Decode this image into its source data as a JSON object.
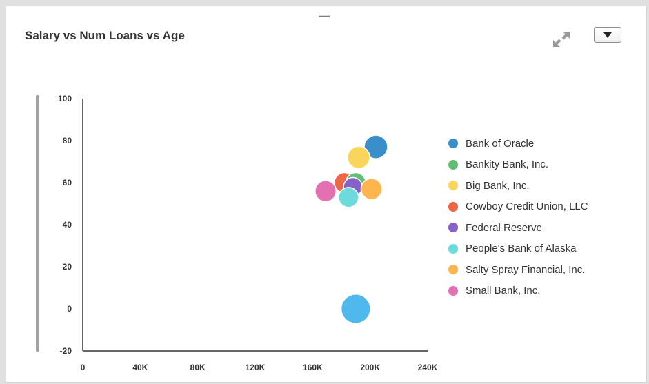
{
  "card": {
    "title": "Salary vs Num Loans vs Age"
  },
  "controls": {
    "expand_icon": "expand-arrows-icon",
    "menu_icon": "caret-down-icon"
  },
  "chart_data": {
    "type": "scatter",
    "subtype": "bubble",
    "title": "Salary vs Num Loans vs Age",
    "xlabel": "",
    "ylabel": "",
    "xlim": [
      0,
      240000
    ],
    "ylim": [
      -20,
      100
    ],
    "x_ticks": [
      "0",
      "40K",
      "80K",
      "120K",
      "160K",
      "200K",
      "240K"
    ],
    "y_ticks": [
      "100",
      "80",
      "60",
      "40",
      "20",
      "0",
      "-20"
    ],
    "grid": false,
    "legend_position": "right",
    "series": [
      {
        "name": "Bank of Oracle",
        "color": "#3a8fcb",
        "points": [
          {
            "x": 204000,
            "y": 77,
            "size": 1.0
          }
        ]
      },
      {
        "name": "Bankity Bank, Inc.",
        "color": "#62be74",
        "points": [
          {
            "x": 190000,
            "y": 60,
            "size": 0.85
          }
        ]
      },
      {
        "name": "Big Bank, Inc.",
        "color": "#fad55c",
        "points": [
          {
            "x": 192000,
            "y": 72,
            "size": 0.95
          }
        ]
      },
      {
        "name": "Cowboy Credit Union, LLC",
        "color": "#ed6647",
        "points": [
          {
            "x": 182000,
            "y": 60,
            "size": 0.85
          }
        ]
      },
      {
        "name": "Federal Reserve",
        "color": "#8561c8",
        "points": [
          {
            "x": 188000,
            "y": 58,
            "size": 0.8
          }
        ]
      },
      {
        "name": "People's Bank of Alaska",
        "color": "#6ddbdb",
        "points": [
          {
            "x": 185000,
            "y": 53,
            "size": 0.85
          }
        ]
      },
      {
        "name": "Salty Spray Financial, Inc.",
        "color": "#ffb54d",
        "points": [
          {
            "x": 201000,
            "y": 57,
            "size": 0.9
          }
        ]
      },
      {
        "name": "Small Bank, Inc.",
        "color": "#e371b2",
        "points": [
          {
            "x": 169000,
            "y": 56,
            "size": 0.9
          }
        ]
      },
      {
        "name": "",
        "color": "#4fb8ec",
        "points": [
          {
            "x": 190000,
            "y": 0,
            "size": 1.25
          }
        ]
      }
    ]
  }
}
